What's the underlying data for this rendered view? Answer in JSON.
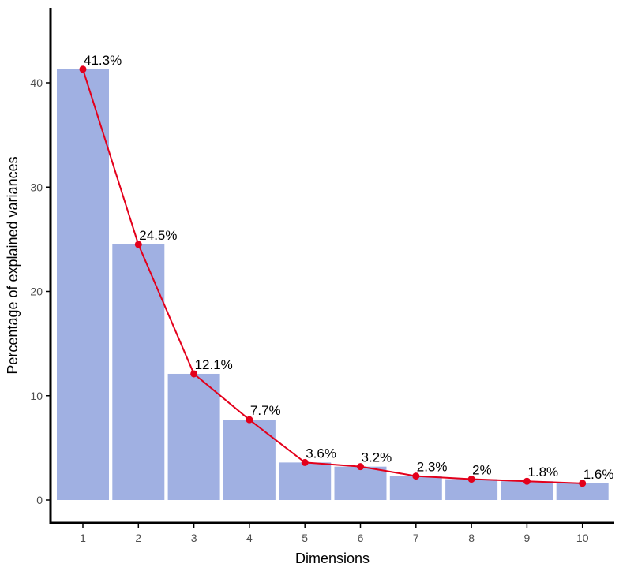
{
  "chart_data": {
    "type": "bar",
    "title": "",
    "xlabel": "Dimensions",
    "ylabel": "Percentage of explained variances",
    "categories": [
      "1",
      "2",
      "3",
      "4",
      "5",
      "6",
      "7",
      "8",
      "9",
      "10"
    ],
    "values": [
      41.3,
      24.5,
      12.1,
      7.7,
      3.6,
      3.2,
      2.3,
      2.0,
      1.8,
      1.6
    ],
    "data_labels": [
      "41.3%",
      "24.5%",
      "12.1%",
      "7.7%",
      "3.6%",
      "3.2%",
      "2.3%",
      "2%",
      "1.8%",
      "1.6%"
    ],
    "y_ticks": [
      0,
      10,
      20,
      30,
      40
    ],
    "ylim": [
      0,
      45.5
    ],
    "grid": false,
    "legend": "none",
    "colors": {
      "bar": "#a0b0e2",
      "line": "#e3001b",
      "axis": "#000000"
    },
    "overlay": "line"
  }
}
